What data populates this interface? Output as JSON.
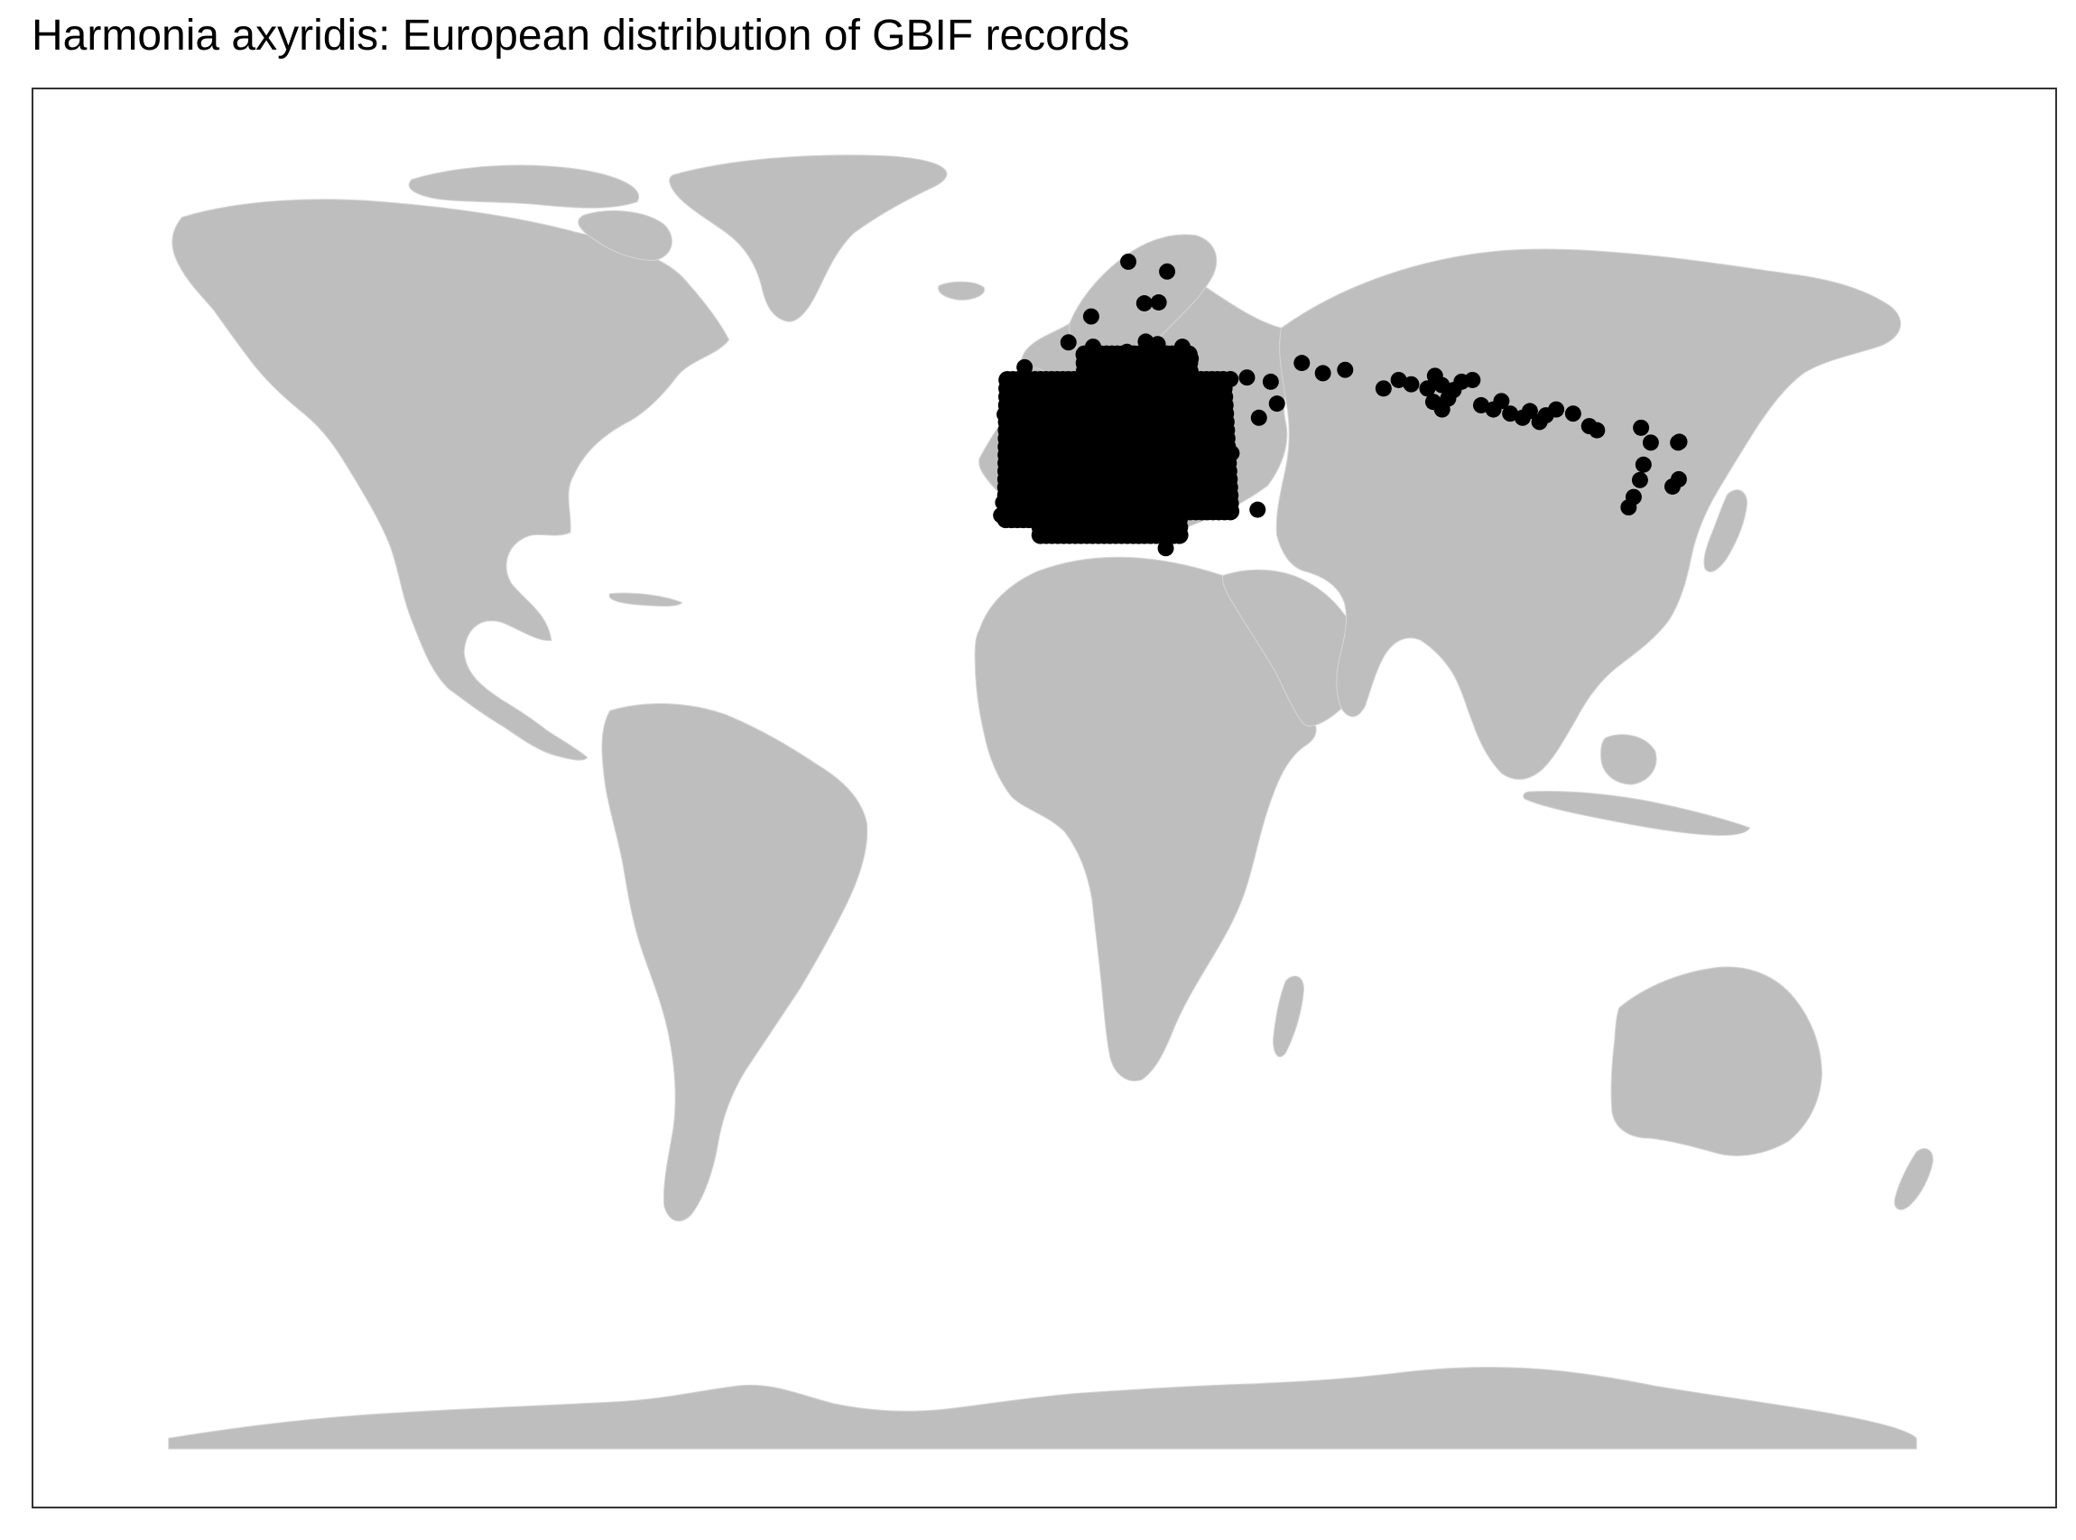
{
  "title": "Harmonia axyridis: European distribution of GBIF records",
  "colors": {
    "land": "#bebebe",
    "border": "#d6d6d6",
    "records": "#000000",
    "frame": "#333333",
    "background": "#ffffff"
  },
  "map": {
    "projection": "Robinson (world)",
    "layers": [
      "country-polygons",
      "occurrence-points"
    ]
  },
  "chart_data": {
    "type": "scatter",
    "x_label": "",
    "y_label": "",
    "series": [
      {
        "marker": "filled-circle",
        "color": "#000000",
        "points_lon_lat": [
          [
            -9.0,
            39.5
          ],
          [
            -8.6,
            41.1
          ],
          [
            -7.5,
            43.2
          ],
          [
            -5.8,
            43.4
          ],
          [
            -3.7,
            40.4
          ],
          [
            -2.9,
            43.2
          ],
          [
            -1.6,
            42.8
          ],
          [
            0.5,
            41.6
          ],
          [
            2.2,
            41.4
          ],
          [
            1.4,
            43.6
          ],
          [
            -1.5,
            47.2
          ],
          [
            -4.5,
            48.4
          ],
          [
            -1.2,
            46.2
          ],
          [
            0.7,
            47.4
          ],
          [
            2.3,
            48.9
          ],
          [
            4.8,
            45.8
          ],
          [
            5.4,
            43.3
          ],
          [
            7.3,
            43.7
          ],
          [
            6.2,
            48.7
          ],
          [
            3.1,
            50.6
          ],
          [
            -5.5,
            50.1
          ],
          [
            -3.5,
            50.7
          ],
          [
            -1.5,
            50.9
          ],
          [
            0.1,
            51.5
          ],
          [
            1.3,
            52.6
          ],
          [
            -2.2,
            53.5
          ],
          [
            -1.5,
            54.9
          ],
          [
            -3.2,
            55.9
          ],
          [
            -4.3,
            57.5
          ],
          [
            -6.3,
            53.3
          ],
          [
            -8.5,
            51.9
          ],
          [
            4.4,
            50.8
          ],
          [
            4.9,
            52.4
          ],
          [
            6.6,
            53.2
          ],
          [
            8.8,
            53.1
          ],
          [
            10.0,
            53.6
          ],
          [
            13.4,
            52.5
          ],
          [
            12.4,
            51.3
          ],
          [
            9.2,
            48.8
          ],
          [
            11.6,
            48.1
          ],
          [
            8.5,
            47.4
          ],
          [
            7.4,
            46.9
          ],
          [
            9.2,
            45.5
          ],
          [
            11.3,
            44.5
          ],
          [
            12.5,
            41.9
          ],
          [
            14.3,
            40.9
          ],
          [
            16.9,
            41.1
          ],
          [
            15.6,
            38.1
          ],
          [
            13.4,
            38.1
          ],
          [
            9.1,
            39.2
          ],
          [
            16.4,
            48.2
          ],
          [
            14.4,
            50.1
          ],
          [
            17.1,
            48.1
          ],
          [
            19.0,
            47.5
          ],
          [
            21.0,
            52.2
          ],
          [
            19.9,
            50.1
          ],
          [
            18.6,
            54.4
          ],
          [
            24.1,
            56.9
          ],
          [
            25.3,
            54.7
          ],
          [
            27.6,
            53.9
          ],
          [
            30.5,
            50.4
          ],
          [
            28.7,
            44.2
          ],
          [
            26.1,
            44.4
          ],
          [
            23.3,
            42.7
          ],
          [
            20.5,
            44.8
          ],
          [
            16.4,
            43.5
          ],
          [
            14.5,
            46.1
          ],
          [
            21.9,
            41.9
          ],
          [
            22.9,
            40.6
          ],
          [
            23.7,
            37.9
          ],
          [
            25.1,
            35.3
          ],
          [
            28.9,
            41.0
          ],
          [
            33.0,
            40.0
          ],
          [
            36.3,
            41.3
          ],
          [
            39.7,
            47.2
          ],
          [
            44.5,
            40.2
          ],
          [
            38.9,
            45.0
          ],
          [
            34.1,
            44.9
          ],
          [
            37.6,
            55.8
          ],
          [
            30.3,
            59.9
          ],
          [
            24.9,
            60.2
          ],
          [
            22.3,
            60.5
          ],
          [
            25.5,
            65.0
          ],
          [
            27.7,
            68.5
          ],
          [
            18.1,
            59.3
          ],
          [
            11.9,
            57.7
          ],
          [
            10.4,
            63.4
          ],
          [
            5.3,
            60.4
          ],
          [
            10.7,
            59.9
          ],
          [
            12.6,
            55.7
          ],
          [
            9.9,
            57.0
          ],
          [
            22.3,
            64.9
          ],
          [
            19.0,
            69.6
          ],
          [
            32.0,
            58.5
          ],
          [
            40.4,
            56.1
          ],
          [
            44.0,
            56.3
          ],
          [
            49.1,
            55.8
          ],
          [
            56.2,
            58.0
          ],
          [
            60.6,
            56.8
          ],
          [
            50.1,
            53.2
          ],
          [
            46.0,
            51.5
          ],
          [
            65.5,
            57.2
          ],
          [
            73.4,
            55.0
          ],
          [
            76.9,
            56.0
          ],
          [
            79.5,
            55.5
          ],
          [
            82.9,
            55.0
          ],
          [
            84.9,
            56.5
          ],
          [
            86.1,
            55.4
          ],
          [
            83.8,
            53.4
          ],
          [
            85.5,
            52.5
          ],
          [
            87.1,
            53.8
          ],
          [
            88.5,
            54.8
          ],
          [
            90.5,
            55.8
          ],
          [
            92.9,
            56.0
          ],
          [
            94.0,
            53.0
          ],
          [
            96.5,
            52.5
          ],
          [
            98.5,
            53.5
          ],
          [
            100.0,
            52.0
          ],
          [
            102.5,
            51.5
          ],
          [
            104.3,
            52.3
          ],
          [
            106.0,
            51.0
          ],
          [
            107.6,
            51.8
          ],
          [
            110.0,
            52.5
          ],
          [
            113.5,
            52.0
          ],
          [
            116.5,
            50.5
          ],
          [
            118.0,
            50.0
          ],
          [
            127.5,
            50.3
          ],
          [
            129.0,
            48.5
          ],
          [
            131.9,
            43.1
          ],
          [
            133.5,
            44.0
          ],
          [
            134.8,
            48.5
          ],
          [
            135.1,
            48.6
          ],
          [
            126.6,
            45.8
          ],
          [
            125.3,
            43.9
          ],
          [
            123.4,
            41.8
          ],
          [
            122.0,
            40.5
          ]
        ]
      }
    ],
    "notes": "Point coordinates estimated from the rendered map (longitude, latitude in degrees). Records densely cover Europe with clusters in western/southern Siberia and the Russian Far East."
  }
}
